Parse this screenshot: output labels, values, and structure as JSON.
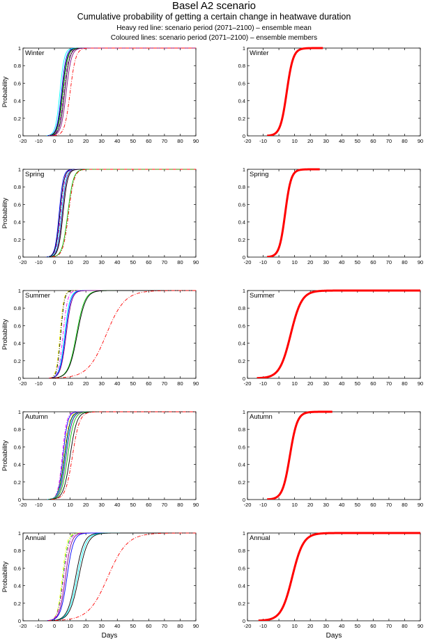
{
  "header": {
    "title": "Basel A2 scenario",
    "subtitle": "Cumulative probability of getting a certain change in heatwave duration",
    "note_mean": "Heavy red line: scenario period (2071–2100) – ensemble mean",
    "note_members": "Coloured lines: scenario period (2071–2100) – ensemble members"
  },
  "axes": {
    "xlabel": "Days",
    "ylabel": "Probability",
    "xlim": [
      -20,
      90
    ],
    "ylim": [
      0,
      1
    ],
    "xticks": [
      -20,
      -10,
      0,
      10,
      20,
      30,
      40,
      50,
      60,
      70,
      80,
      90
    ],
    "yticks": [
      0,
      0.2,
      0.4,
      0.6,
      0.8,
      1
    ]
  },
  "colors": {
    "mean": "#ff0000",
    "members": [
      "#000000",
      "#0000ff",
      "#00c000",
      "#ff00ff",
      "#00ffff",
      "#ff0000",
      "#ffff00",
      "#800080"
    ]
  },
  "chart_data": [
    {
      "type": "line",
      "panel": "left",
      "season": "Winter",
      "series": [
        {
          "mu": 3.5,
          "s": 2.4,
          "color": "#00ffff",
          "dash": "solid"
        },
        {
          "mu": 4.5,
          "s": 2.5,
          "color": "#0000ff",
          "dash": "solid"
        },
        {
          "mu": 5.0,
          "s": 2.6,
          "color": "#000000",
          "dash": "solid"
        },
        {
          "mu": 5.5,
          "s": 2.6,
          "color": "#00c000",
          "dash": "solid"
        },
        {
          "mu": 6.0,
          "s": 2.7,
          "color": "#ff00ff",
          "dash": "dashdot"
        },
        {
          "mu": 6.5,
          "s": 2.7,
          "color": "#000000",
          "dash": "solid"
        },
        {
          "mu": 7.5,
          "s": 2.8,
          "color": "#800080",
          "dash": "solid"
        },
        {
          "mu": 10.0,
          "s": 3.0,
          "color": "#ff0000",
          "dash": "dashdot"
        }
      ]
    },
    {
      "type": "line",
      "panel": "right",
      "season": "Winter",
      "series": [
        {
          "mu": 5.0,
          "s": 3.5,
          "color": "#ff0000",
          "dash": "solid",
          "xmax": 28
        }
      ]
    },
    {
      "type": "line",
      "panel": "left",
      "season": "Spring",
      "series": [
        {
          "mu": 3.0,
          "s": 2.2,
          "color": "#0000ff",
          "dash": "solid"
        },
        {
          "mu": 3.5,
          "s": 2.3,
          "color": "#000000",
          "dash": "solid"
        },
        {
          "mu": 4.0,
          "s": 2.3,
          "color": "#ff00ff",
          "dash": "dashdot"
        },
        {
          "mu": 4.5,
          "s": 2.4,
          "color": "#00ffff",
          "dash": "solid"
        },
        {
          "mu": 5.0,
          "s": 2.4,
          "color": "#800080",
          "dash": "solid"
        },
        {
          "mu": 5.5,
          "s": 2.5,
          "color": "#000000",
          "dash": "solid"
        },
        {
          "mu": 8.5,
          "s": 3.0,
          "color": "#00c000",
          "dash": "solid"
        },
        {
          "mu": 9.0,
          "s": 3.0,
          "color": "#ff0000",
          "dash": "dashdot"
        }
      ]
    },
    {
      "type": "line",
      "panel": "right",
      "season": "Spring",
      "series": [
        {
          "mu": 4.0,
          "s": 3.2,
          "color": "#ff0000",
          "dash": "solid",
          "xmax": 26
        }
      ]
    },
    {
      "type": "line",
      "panel": "left",
      "season": "Summer",
      "series": [
        {
          "mu": 3.5,
          "s": 2.0,
          "color": "#ffff00",
          "dash": "dashdot"
        },
        {
          "mu": 4.0,
          "s": 2.0,
          "color": "#000000",
          "dash": "dashdot"
        },
        {
          "mu": 5.5,
          "s": 2.4,
          "color": "#ff00ff",
          "dash": "dashdot"
        },
        {
          "mu": 6.5,
          "s": 2.8,
          "color": "#00ffff",
          "dash": "solid"
        },
        {
          "mu": 7.0,
          "s": 2.9,
          "color": "#0000ff",
          "dash": "solid"
        },
        {
          "mu": 7.5,
          "s": 3.0,
          "color": "#800080",
          "dash": "solid"
        },
        {
          "mu": 14.0,
          "s": 4.5,
          "color": "#00c000",
          "dash": "solid"
        },
        {
          "mu": 14.5,
          "s": 4.6,
          "color": "#000000",
          "dash": "solid"
        },
        {
          "mu": 33.0,
          "s": 10.0,
          "color": "#ff0000",
          "dash": "dashdot"
        }
      ]
    },
    {
      "type": "line",
      "panel": "right",
      "season": "Summer",
      "series": [
        {
          "mu": 7.5,
          "s": 6.0,
          "color": "#ff0000",
          "dash": "solid",
          "xmax": 90
        }
      ]
    },
    {
      "type": "line",
      "panel": "left",
      "season": "Autumn",
      "series": [
        {
          "mu": 5.0,
          "s": 2.4,
          "color": "#ff00ff",
          "dash": "dashdot"
        },
        {
          "mu": 5.5,
          "s": 2.5,
          "color": "#0000ff",
          "dash": "solid"
        },
        {
          "mu": 6.0,
          "s": 2.8,
          "color": "#ffff00",
          "dash": "dashdot"
        },
        {
          "mu": 6.5,
          "s": 3.0,
          "color": "#000000",
          "dash": "solid"
        },
        {
          "mu": 7.0,
          "s": 3.2,
          "color": "#00ffff",
          "dash": "solid"
        },
        {
          "mu": 7.5,
          "s": 3.2,
          "color": "#800080",
          "dash": "solid"
        },
        {
          "mu": 8.5,
          "s": 3.4,
          "color": "#00c000",
          "dash": "solid"
        },
        {
          "mu": 10.0,
          "s": 3.6,
          "color": "#000000",
          "dash": "solid"
        },
        {
          "mu": 11.5,
          "s": 3.8,
          "color": "#ff0000",
          "dash": "dashdot"
        }
      ]
    },
    {
      "type": "line",
      "panel": "right",
      "season": "Autumn",
      "series": [
        {
          "mu": 7.0,
          "s": 4.0,
          "color": "#ff0000",
          "dash": "solid",
          "xmax": 34
        }
      ]
    },
    {
      "type": "line",
      "panel": "left",
      "season": "Annual",
      "series": [
        {
          "mu": 5.0,
          "s": 2.6,
          "color": "#ffff00",
          "dash": "dashdot"
        },
        {
          "mu": 5.5,
          "s": 2.8,
          "color": "#00c000",
          "dash": "dashdot"
        },
        {
          "mu": 6.0,
          "s": 3.0,
          "color": "#ff00ff",
          "dash": "dashdot"
        },
        {
          "mu": 7.0,
          "s": 3.2,
          "color": "#800080",
          "dash": "solid"
        },
        {
          "mu": 8.0,
          "s": 3.5,
          "color": "#0000ff",
          "dash": "solid"
        },
        {
          "mu": 13.5,
          "s": 4.5,
          "color": "#000000",
          "dash": "solid"
        },
        {
          "mu": 14.5,
          "s": 4.7,
          "color": "#00ffff",
          "dash": "solid"
        },
        {
          "mu": 15.5,
          "s": 4.9,
          "color": "#000000",
          "dash": "solid"
        },
        {
          "mu": 34.0,
          "s": 10.5,
          "color": "#ff0000",
          "dash": "dashdot"
        }
      ]
    },
    {
      "type": "line",
      "panel": "right",
      "season": "Annual",
      "series": [
        {
          "mu": 8.5,
          "s": 6.0,
          "color": "#ff0000",
          "dash": "solid",
          "xmax": 90
        }
      ]
    }
  ]
}
